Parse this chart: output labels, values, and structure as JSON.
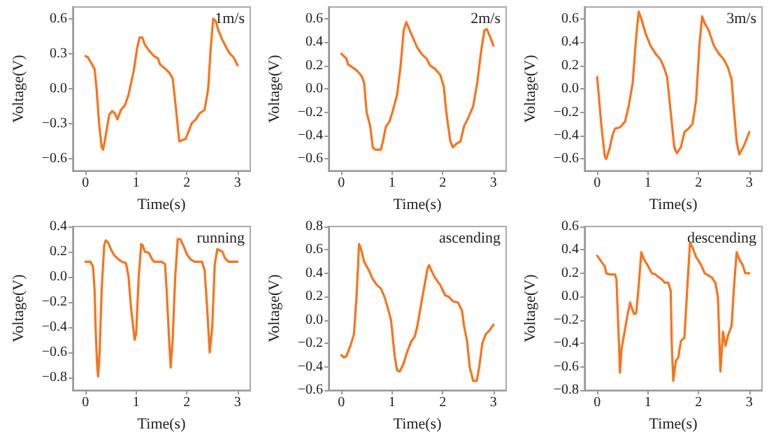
{
  "chart_data": [
    {
      "type": "line",
      "xlabel": "Time(s)",
      "ylabel": "Voltage(V)",
      "annotations": [
        "1m/s"
      ],
      "color": "#f9731c",
      "xlim": [
        -0.25,
        3.25
      ],
      "xticks": [
        0,
        1,
        2,
        3
      ],
      "ylim": [
        -0.7,
        0.7
      ],
      "yticks": [
        {
          "value": -0.6,
          "label": "−0.6"
        },
        {
          "value": -0.3,
          "label": "−0.3"
        },
        {
          "value": 0,
          "label": "0.0"
        },
        {
          "value": 0.3,
          "label": "0.3"
        },
        {
          "value": 0.6,
          "label": "0.6"
        }
      ],
      "x": [
        0,
        0.05,
        0.1,
        0.18,
        0.22,
        0.27,
        0.32,
        0.35,
        0.4,
        0.47,
        0.53,
        0.58,
        0.63,
        0.7,
        0.78,
        0.85,
        0.95,
        1.02,
        1.07,
        1.12,
        1.17,
        1.25,
        1.35,
        1.43,
        1.47,
        1.55,
        1.65,
        1.72,
        1.78,
        1.85,
        1.9,
        1.97,
        2.02,
        2.1,
        2.18,
        2.25,
        2.35,
        2.42,
        2.47,
        2.52,
        2.57,
        2.62,
        2.7,
        2.78,
        2.85,
        2.92,
        3.0
      ],
      "values": [
        0.28,
        0.27,
        0.23,
        0.17,
        0,
        -0.3,
        -0.5,
        -0.52,
        -0.4,
        -0.22,
        -0.19,
        -0.21,
        -0.26,
        -0.18,
        -0.14,
        -0.05,
        0.15,
        0.35,
        0.44,
        0.44,
        0.38,
        0.33,
        0.28,
        0.26,
        0.21,
        0.18,
        0.14,
        0.09,
        -0.15,
        -0.45,
        -0.44,
        -0.43,
        -0.38,
        -0.29,
        -0.26,
        -0.21,
        -0.18,
        0,
        0.35,
        0.6,
        0.58,
        0.5,
        0.42,
        0.35,
        0.3,
        0.27,
        0.2
      ]
    },
    {
      "type": "line",
      "xlabel": "Time(s)",
      "ylabel": "Voltage(V)",
      "annotations": [
        "2m/s"
      ],
      "color": "#f9731c",
      "xlim": [
        -0.25,
        3.25
      ],
      "xticks": [
        0,
        1,
        2,
        3
      ],
      "ylim": [
        -0.7,
        0.7
      ],
      "yticks": [
        {
          "value": -0.6,
          "label": "−0.6"
        },
        {
          "value": -0.4,
          "label": "−0.4"
        },
        {
          "value": -0.2,
          "label": "−0.2"
        },
        {
          "value": 0,
          "label": "0.0"
        },
        {
          "value": 0.2,
          "label": "0.2"
        },
        {
          "value": 0.4,
          "label": "0.4"
        },
        {
          "value": 0.6,
          "label": "0.6"
        }
      ],
      "x": [
        0,
        0.05,
        0.1,
        0.13,
        0.2,
        0.3,
        0.4,
        0.45,
        0.5,
        0.57,
        0.62,
        0.67,
        0.78,
        0.82,
        0.88,
        0.95,
        1.02,
        1.1,
        1.17,
        1.23,
        1.28,
        1.33,
        1.42,
        1.5,
        1.6,
        1.68,
        1.75,
        1.85,
        1.95,
        2.02,
        2.07,
        2.15,
        2.2,
        2.27,
        2.35,
        2.42,
        2.5,
        2.6,
        2.68,
        2.75,
        2.82,
        2.87,
        2.93,
        3.0
      ],
      "values": [
        0.3,
        0.28,
        0.26,
        0.21,
        0.19,
        0.16,
        0.11,
        0.05,
        -0.2,
        -0.32,
        -0.5,
        -0.52,
        -0.52,
        -0.45,
        -0.32,
        -0.28,
        -0.18,
        -0.05,
        0.2,
        0.5,
        0.57,
        0.52,
        0.43,
        0.35,
        0.29,
        0.26,
        0.2,
        0.17,
        0.12,
        0.02,
        -0.2,
        -0.45,
        -0.5,
        -0.47,
        -0.45,
        -0.32,
        -0.25,
        -0.15,
        0.05,
        0.3,
        0.5,
        0.51,
        0.45,
        0.37
      ]
    },
    {
      "type": "line",
      "xlabel": "Time(s)",
      "ylabel": "Voltage(V)",
      "annotations": [
        "3m/s"
      ],
      "color": "#f9731c",
      "xlim": [
        -0.25,
        3.25
      ],
      "xticks": [
        0,
        1,
        2,
        3
      ],
      "ylim": [
        -0.7,
        0.7
      ],
      "yticks": [
        {
          "value": -0.6,
          "label": "−0.6"
        },
        {
          "value": -0.4,
          "label": "−0.4"
        },
        {
          "value": -0.2,
          "label": "−0.2"
        },
        {
          "value": 0,
          "label": "0.0"
        },
        {
          "value": 0.2,
          "label": "0.2"
        },
        {
          "value": 0.4,
          "label": "0.4"
        },
        {
          "value": 0.6,
          "label": "0.6"
        }
      ],
      "x": [
        0,
        0.08,
        0.15,
        0.18,
        0.25,
        0.3,
        0.35,
        0.45,
        0.55,
        0.62,
        0.7,
        0.77,
        0.82,
        0.87,
        0.95,
        1.05,
        1.15,
        1.25,
        1.32,
        1.38,
        1.45,
        1.52,
        1.57,
        1.65,
        1.72,
        1.8,
        1.88,
        1.95,
        2.02,
        2.07,
        2.12,
        2.2,
        2.3,
        2.4,
        2.5,
        2.58,
        2.65,
        2.7,
        2.75,
        2.8,
        2.88,
        3.0
      ],
      "values": [
        0.1,
        -0.3,
        -0.58,
        -0.6,
        -0.5,
        -0.4,
        -0.34,
        -0.33,
        -0.28,
        -0.15,
        0.05,
        0.45,
        0.66,
        0.6,
        0.48,
        0.37,
        0.3,
        0.25,
        0.18,
        0.1,
        -0.2,
        -0.5,
        -0.55,
        -0.5,
        -0.37,
        -0.34,
        -0.3,
        -0.1,
        0.4,
        0.62,
        0.56,
        0.5,
        0.37,
        0.3,
        0.25,
        0.18,
        0.08,
        -0.2,
        -0.45,
        -0.56,
        -0.5,
        -0.37
      ]
    },
    {
      "type": "line",
      "xlabel": "Time(s)",
      "ylabel": "Voltage(V)",
      "annotations": [
        "running"
      ],
      "color": "#f9731c",
      "xlim": [
        -0.25,
        3.25
      ],
      "xticks": [
        0,
        1,
        2,
        3
      ],
      "ylim": [
        -0.9,
        0.4
      ],
      "yticks": [
        {
          "value": -0.8,
          "label": "−0.8"
        },
        {
          "value": -0.6,
          "label": "−0.6"
        },
        {
          "value": -0.4,
          "label": "−0.4"
        },
        {
          "value": -0.2,
          "label": "−0.2"
        },
        {
          "value": 0,
          "label": "0.0"
        },
        {
          "value": 0.2,
          "label": "0.2"
        },
        {
          "value": 0.4,
          "label": "0.4"
        }
      ],
      "x": [
        0,
        0.1,
        0.15,
        0.18,
        0.2,
        0.23,
        0.25,
        0.28,
        0.32,
        0.37,
        0.4,
        0.45,
        0.5,
        0.57,
        0.65,
        0.72,
        0.8,
        0.85,
        0.9,
        0.97,
        1.0,
        1.05,
        1.1,
        1.13,
        1.17,
        1.25,
        1.3,
        1.35,
        1.5,
        1.57,
        1.6,
        1.65,
        1.68,
        1.72,
        1.77,
        1.82,
        1.87,
        1.93,
        2.0,
        2.07,
        2.15,
        2.3,
        2.35,
        2.4,
        2.45,
        2.5,
        2.55,
        2.6,
        2.65,
        2.7,
        2.75,
        2.82,
        3.0
      ],
      "values": [
        0.12,
        0.12,
        0.08,
        -0.1,
        -0.4,
        -0.7,
        -0.79,
        -0.6,
        -0.1,
        0.25,
        0.29,
        0.27,
        0.22,
        0.17,
        0.14,
        0.12,
        0.11,
        0,
        -0.25,
        -0.5,
        -0.45,
        0,
        0.26,
        0.25,
        0.2,
        0.19,
        0.15,
        0.12,
        0.12,
        0.1,
        -0.1,
        -0.5,
        -0.72,
        -0.5,
        0,
        0.3,
        0.3,
        0.25,
        0.18,
        0.14,
        0.12,
        0.12,
        0.05,
        -0.25,
        -0.6,
        -0.4,
        0.1,
        0.22,
        0.21,
        0.2,
        0.15,
        0.12,
        0.12
      ]
    },
    {
      "type": "line",
      "xlabel": "Time(s)",
      "ylabel": "Voltage(V)",
      "annotations": [
        "ascending"
      ],
      "color": "#f9731c",
      "xlim": [
        -0.25,
        3.25
      ],
      "xticks": [
        0,
        1,
        2,
        3
      ],
      "ylim": [
        -0.6,
        0.8
      ],
      "yticks": [
        {
          "value": -0.6,
          "label": "−0.6"
        },
        {
          "value": -0.4,
          "label": "−0.4"
        },
        {
          "value": -0.2,
          "label": "−0.2"
        },
        {
          "value": 0,
          "label": "0.0"
        },
        {
          "value": 0.2,
          "label": "0.2"
        },
        {
          "value": 0.4,
          "label": "0.4"
        },
        {
          "value": 0.6,
          "label": "0.6"
        },
        {
          "value": 0.8,
          "label": "0.8"
        }
      ],
      "x": [
        0,
        0.05,
        0.1,
        0.18,
        0.25,
        0.3,
        0.35,
        0.38,
        0.45,
        0.55,
        0.62,
        0.7,
        0.78,
        0.85,
        0.92,
        0.98,
        1.05,
        1.1,
        1.15,
        1.22,
        1.3,
        1.38,
        1.45,
        1.5,
        1.6,
        1.7,
        1.73,
        1.78,
        1.85,
        1.95,
        2.05,
        2.12,
        2.2,
        2.3,
        2.38,
        2.42,
        2.48,
        2.53,
        2.6,
        2.67,
        2.72,
        2.78,
        2.85,
        2.92,
        3.0
      ],
      "values": [
        -0.3,
        -0.32,
        -0.31,
        -0.22,
        -0.12,
        0.2,
        0.65,
        0.62,
        0.5,
        0.42,
        0.35,
        0.3,
        0.27,
        0.2,
        0.1,
        0,
        -0.3,
        -0.43,
        -0.44,
        -0.38,
        -0.27,
        -0.18,
        -0.14,
        -0.05,
        0.2,
        0.44,
        0.47,
        0.42,
        0.36,
        0.3,
        0.21,
        0.2,
        0.16,
        0.15,
        0.08,
        -0.05,
        -0.18,
        -0.4,
        -0.52,
        -0.52,
        -0.4,
        -0.2,
        -0.12,
        -0.09,
        -0.04
      ]
    },
    {
      "type": "line",
      "xlabel": "Time(s)",
      "ylabel": "Voltage(V)",
      "annotations": [
        "descending"
      ],
      "color": "#f9731c",
      "xlim": [
        -0.25,
        3.25
      ],
      "xticks": [
        0,
        1,
        2,
        3
      ],
      "ylim": [
        -0.8,
        0.6
      ],
      "yticks": [
        {
          "value": -0.8,
          "label": "−0.8"
        },
        {
          "value": -0.6,
          "label": "−0.6"
        },
        {
          "value": -0.4,
          "label": "−0.4"
        },
        {
          "value": -0.2,
          "label": "−0.2"
        },
        {
          "value": 0,
          "label": "0.0"
        },
        {
          "value": 0.2,
          "label": "0.2"
        },
        {
          "value": 0.4,
          "label": "0.4"
        },
        {
          "value": 0.6,
          "label": "0.6"
        }
      ],
      "x": [
        0,
        0.05,
        0.1,
        0.15,
        0.18,
        0.25,
        0.35,
        0.38,
        0.42,
        0.45,
        0.48,
        0.52,
        0.6,
        0.65,
        0.7,
        0.73,
        0.77,
        0.82,
        0.87,
        0.92,
        0.98,
        1.03,
        1.08,
        1.15,
        1.2,
        1.27,
        1.33,
        1.4,
        1.45,
        1.47,
        1.5,
        1.55,
        1.6,
        1.65,
        1.72,
        1.78,
        1.83,
        1.88,
        1.95,
        2.05,
        2.12,
        2.2,
        2.27,
        2.33,
        2.38,
        2.43,
        2.48,
        2.53,
        2.58,
        2.65,
        2.7,
        2.75,
        2.8,
        2.87,
        2.92,
        3.0
      ],
      "values": [
        0.35,
        0.32,
        0.29,
        0.26,
        0.2,
        0.19,
        0.19,
        0.15,
        -0.3,
        -0.65,
        -0.45,
        -0.35,
        -0.15,
        -0.05,
        -0.12,
        -0.15,
        -0.14,
        0.1,
        0.38,
        0.32,
        0.28,
        0.24,
        0.2,
        0.19,
        0.17,
        0.15,
        0.12,
        0.12,
        0.05,
        -0.4,
        -0.72,
        -0.55,
        -0.52,
        -0.38,
        -0.35,
        0.1,
        0.46,
        0.42,
        0.34,
        0.27,
        0.2,
        0.18,
        0.16,
        0.12,
        0,
        -0.64,
        -0.3,
        -0.42,
        -0.33,
        -0.25,
        0.1,
        0.38,
        0.32,
        0.27,
        0.2,
        0.2
      ]
    }
  ]
}
